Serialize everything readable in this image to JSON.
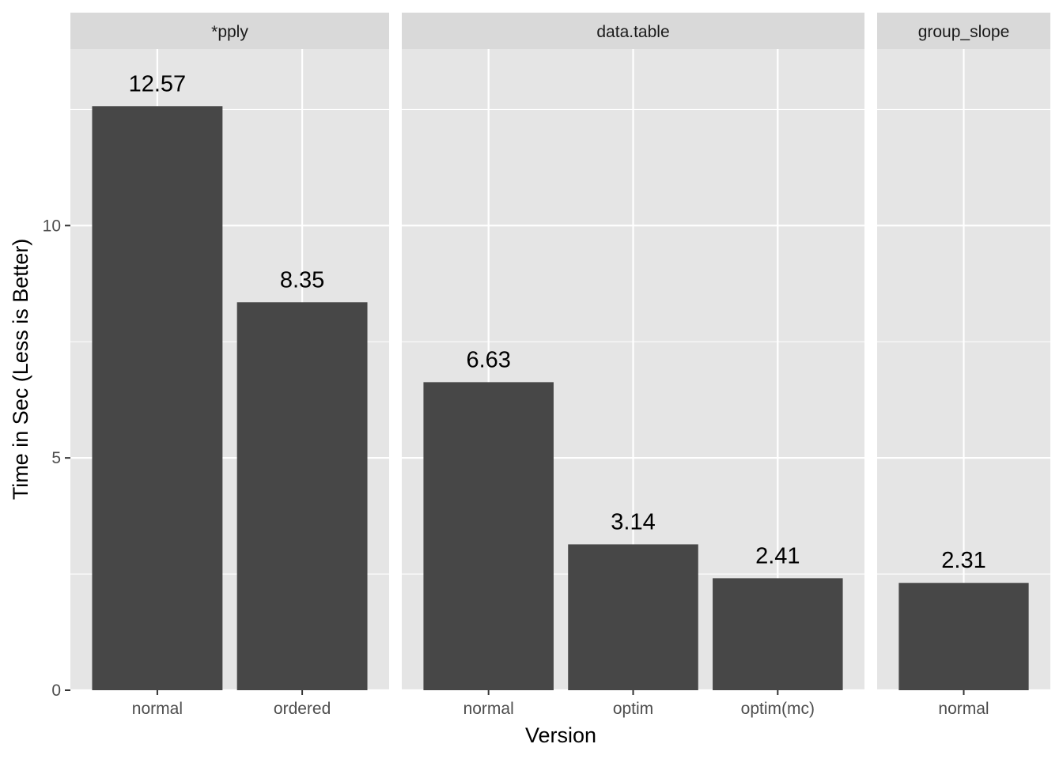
{
  "chart_data": {
    "type": "bar",
    "xlabel": "Version",
    "ylabel": "Time in Sec (Less is Better)",
    "ylim": [
      0,
      13.8
    ],
    "y_ticks": [
      0,
      5,
      10
    ],
    "grid": true,
    "facet_by": "method",
    "panels": [
      {
        "name": "*pply",
        "categories": [
          "normal",
          "ordered"
        ],
        "values": [
          12.57,
          8.35
        ],
        "labels": [
          "12.57",
          "8.35"
        ]
      },
      {
        "name": "data.table",
        "categories": [
          "normal",
          "optim",
          "optim(mc)"
        ],
        "values": [
          6.63,
          3.14,
          2.41
        ],
        "labels": [
          "6.63",
          "3.14",
          "2.41"
        ]
      },
      {
        "name": "group_slope",
        "categories": [
          "normal"
        ],
        "values": [
          2.31
        ],
        "labels": [
          "2.31"
        ]
      }
    ]
  },
  "colors": {
    "panel_background": "#e5e5e5",
    "strip_background": "#d9d9d9",
    "grid": "#ffffff",
    "bar_fill": "#474747",
    "tick": "#333333"
  }
}
